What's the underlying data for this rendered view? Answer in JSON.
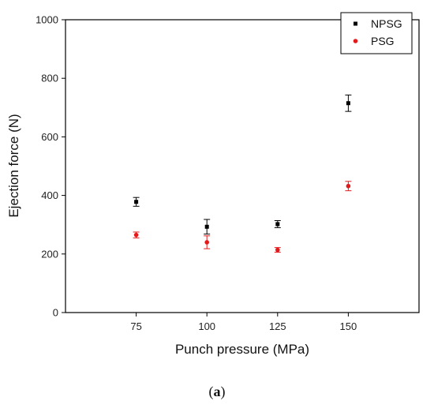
{
  "chart_data": {
    "type": "scatter",
    "title": "",
    "xlabel": "Punch pressure (MPa)",
    "ylabel": "Ejection force (N)",
    "x_categories": [
      75,
      100,
      125,
      150
    ],
    "xlim": [
      50,
      175
    ],
    "ylim": [
      0,
      1000
    ],
    "y_ticks": [
      0,
      200,
      400,
      600,
      800,
      1000
    ],
    "grid": false,
    "legend_position": "top-right",
    "series": [
      {
        "name": "NPSG",
        "marker": "square",
        "color": "#000000",
        "points": [
          {
            "x": 75,
            "y": 378,
            "err": 15
          },
          {
            "x": 100,
            "y": 293,
            "err": 25
          },
          {
            "x": 125,
            "y": 302,
            "err": 12
          },
          {
            "x": 150,
            "y": 715,
            "err": 28
          }
        ]
      },
      {
        "name": "PSG",
        "marker": "circle",
        "color": "#e31a1c",
        "points": [
          {
            "x": 75,
            "y": 265,
            "err": 10
          },
          {
            "x": 100,
            "y": 240,
            "err": 22
          },
          {
            "x": 125,
            "y": 214,
            "err": 8
          },
          {
            "x": 150,
            "y": 432,
            "err": 16
          }
        ]
      }
    ]
  },
  "caption": {
    "open": "(",
    "letter": "a",
    "close": ")"
  }
}
